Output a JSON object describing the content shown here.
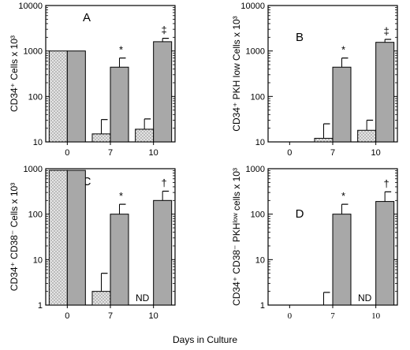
{
  "colors": {
    "stippled_bar": "#e4e4e4",
    "gray_bar": "#a8a8a8",
    "stroke": "#000000"
  },
  "xlabel": "Days in Culture",
  "chart_data": [
    {
      "type": "bar",
      "panel": "A",
      "ylabel": "CD34⁺ Cells x 10³",
      "yscale": "log",
      "ylim": [
        10,
        10000
      ],
      "yticks": [
        "10",
        "100",
        "1000",
        "10000"
      ],
      "categories": [
        "0",
        "7",
        "10"
      ],
      "series": [
        {
          "style": "stippled",
          "values": [
            1000,
            15,
            19
          ],
          "errors": [
            null,
            31,
            32
          ]
        },
        {
          "style": "gray",
          "values": [
            1000,
            440,
            1600
          ],
          "errors": [
            null,
            700,
            1900
          ]
        }
      ],
      "annotations": [
        {
          "category": "7",
          "text": "*"
        },
        {
          "category": "10",
          "text": "‡"
        }
      ]
    },
    {
      "type": "bar",
      "panel": "B",
      "ylabel": "CD34⁺ PKH low Cells x 10³",
      "yscale": "log",
      "ylim": [
        10,
        10000
      ],
      "yticks": [
        "10",
        "100",
        "1000",
        "10000"
      ],
      "categories": [
        "0",
        "7",
        "10"
      ],
      "series": [
        {
          "style": "stippled",
          "values": [
            null,
            12,
            18
          ],
          "errors": [
            null,
            25,
            30
          ]
        },
        {
          "style": "gray",
          "values": [
            null,
            440,
            1550
          ],
          "errors": [
            null,
            700,
            1800
          ]
        }
      ],
      "annotations": [
        {
          "category": "7",
          "text": "*"
        },
        {
          "category": "10",
          "text": "‡"
        }
      ]
    },
    {
      "type": "bar",
      "panel": "C",
      "ylabel": "CD34⁺ CD38⁻ Cells x 10³",
      "yscale": "log",
      "ylim": [
        1,
        1000
      ],
      "yticks": [
        "1",
        "10",
        "100",
        "1000"
      ],
      "categories": [
        "0",
        "7",
        "10"
      ],
      "series": [
        {
          "style": "stippled",
          "values": [
            920,
            2,
            null
          ],
          "errors": [
            null,
            5,
            null
          ]
        },
        {
          "style": "gray",
          "values": [
            920,
            100,
            200
          ],
          "errors": [
            null,
            165,
            320
          ]
        }
      ],
      "annotations": [
        {
          "category": "7",
          "text": "*"
        },
        {
          "category": "10",
          "text": "†"
        },
        {
          "category": "10",
          "text": "ND"
        }
      ]
    },
    {
      "type": "bar",
      "panel": "D",
      "ylabel": "CD34⁺ CD38⁻ PKHˡᵒʷ cells x 10³",
      "yscale": "log",
      "ylim": [
        1,
        1000
      ],
      "yticks": [
        "1",
        "10",
        "100",
        "1000"
      ],
      "categories": [
        "0",
        "7",
        "10"
      ],
      "series": [
        {
          "style": "stippled",
          "values": [
            null,
            null,
            null
          ],
          "errors": [
            null,
            1.9,
            null
          ]
        },
        {
          "style": "gray",
          "values": [
            null,
            100,
            190
          ],
          "errors": [
            null,
            165,
            310
          ]
        }
      ],
      "annotations": [
        {
          "category": "7",
          "text": "*"
        },
        {
          "category": "10",
          "text": "†"
        },
        {
          "category": "10",
          "text": "ND"
        }
      ]
    }
  ]
}
